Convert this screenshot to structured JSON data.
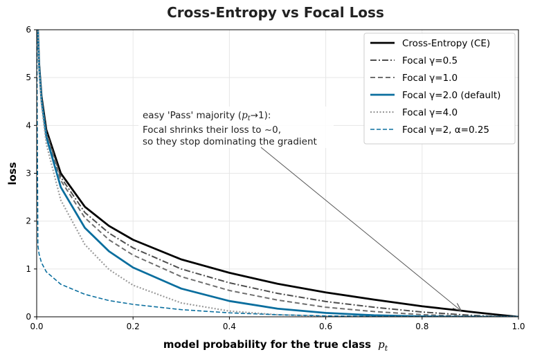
{
  "chart_data": {
    "type": "line",
    "title": "Cross-Entropy vs Focal Loss",
    "xlabel": "model probability for the true class",
    "xlabel_symbol": "p",
    "xlabel_symbol_sub": "t",
    "ylabel": "loss",
    "xlim": [
      0,
      1
    ],
    "ylim": [
      0,
      6
    ],
    "x_ticks": [
      0.0,
      0.2,
      0.4,
      0.6,
      0.8,
      1.0
    ],
    "x_tick_labels": [
      "0.0",
      "0.2",
      "0.4",
      "0.6",
      "0.8",
      "1.0"
    ],
    "y_ticks": [
      0,
      1,
      2,
      3,
      4,
      5,
      6
    ],
    "y_tick_labels": [
      "0",
      "1",
      "2",
      "3",
      "4",
      "5",
      "6"
    ],
    "grid": true,
    "legend_position": "top-right",
    "series": [
      {
        "name": "Cross-Entropy (CE)",
        "color": "#000000",
        "style": "solid",
        "x": [
          0.0025,
          0.005,
          0.01,
          0.02,
          0.05,
          0.1,
          0.15,
          0.2,
          0.3,
          0.4,
          0.5,
          0.6,
          0.7,
          0.8,
          0.88,
          0.9,
          0.95,
          1.0
        ],
        "y": [
          5.99,
          5.3,
          4.61,
          3.91,
          3.0,
          2.3,
          1.9,
          1.61,
          1.2,
          0.92,
          0.69,
          0.51,
          0.36,
          0.22,
          0.13,
          0.105,
          0.05,
          0.0
        ]
      },
      {
        "name": "Focal γ=0.5",
        "color": "#4d4d4d",
        "style": "dashdot",
        "x": [
          0.0025,
          0.005,
          0.01,
          0.02,
          0.05,
          0.1,
          0.15,
          0.2,
          0.3,
          0.4,
          0.5,
          0.6,
          0.7,
          0.8,
          0.88,
          0.9,
          0.95,
          1.0
        ],
        "y": [
          5.98,
          5.29,
          4.59,
          3.87,
          2.92,
          2.18,
          1.75,
          1.44,
          1.0,
          0.71,
          0.49,
          0.32,
          0.2,
          0.1,
          0.045,
          0.033,
          0.011,
          0.0
        ]
      },
      {
        "name": "Focal γ=1.0",
        "color": "#6e6e6e",
        "style": "dashed",
        "x": [
          0.0025,
          0.005,
          0.01,
          0.02,
          0.05,
          0.1,
          0.15,
          0.2,
          0.3,
          0.4,
          0.5,
          0.6,
          0.7,
          0.8,
          0.88,
          0.9,
          0.95,
          1.0
        ],
        "y": [
          5.98,
          5.27,
          4.56,
          3.83,
          2.85,
          2.07,
          1.61,
          1.29,
          0.84,
          0.55,
          0.35,
          0.2,
          0.11,
          0.045,
          0.016,
          0.011,
          0.0026,
          0.0
        ]
      },
      {
        "name": "Focal γ=2.0 (default)",
        "color": "#0a6e9e",
        "style": "solid",
        "x": [
          0.0025,
          0.005,
          0.01,
          0.02,
          0.05,
          0.1,
          0.15,
          0.2,
          0.3,
          0.4,
          0.5,
          0.6,
          0.7,
          0.8,
          0.88,
          0.9,
          0.95,
          1.0
        ],
        "y": [
          5.96,
          5.25,
          4.52,
          3.76,
          2.71,
          1.86,
          1.37,
          1.03,
          0.59,
          0.33,
          0.17,
          0.081,
          0.032,
          0.0089,
          0.002,
          0.001,
          0.0001,
          0.0
        ]
      },
      {
        "name": "Focal γ=4.0",
        "color": "#9a9a9a",
        "style": "dotted",
        "x": [
          0.0025,
          0.005,
          0.01,
          0.02,
          0.05,
          0.1,
          0.15,
          0.2,
          0.3,
          0.4,
          0.5,
          0.6,
          0.7,
          0.8,
          0.88,
          0.9,
          0.95,
          1.0
        ],
        "y": [
          5.93,
          5.2,
          4.43,
          3.61,
          2.44,
          1.51,
          0.99,
          0.66,
          0.29,
          0.12,
          0.043,
          0.013,
          0.0029,
          0.0004,
          0.0,
          0.0,
          0.0,
          0.0
        ]
      },
      {
        "name": "Focal γ=2, α=0.25",
        "color": "#0a6e9e",
        "style": "dashed-thin",
        "x": [
          0.0025,
          0.005,
          0.01,
          0.02,
          0.05,
          0.1,
          0.15,
          0.2,
          0.3,
          0.4,
          0.5,
          0.6,
          0.7,
          0.8,
          0.88,
          0.9,
          0.95,
          1.0
        ],
        "y": [
          1.49,
          1.31,
          1.13,
          0.94,
          0.68,
          0.47,
          0.34,
          0.26,
          0.15,
          0.083,
          0.043,
          0.02,
          0.008,
          0.0022,
          0.0005,
          0.0003,
          0.0,
          0.0
        ]
      }
    ],
    "annotation": {
      "line1_prefix": "easy 'Pass' majority (",
      "line1_math": "p",
      "line1_math_sub": "t",
      "line1_arrow": "→1):",
      "line2": "Focal shrinks their loss to ~0,",
      "line3": "so they stop dominating the gradient",
      "target_x": 0.88,
      "target_y": 0.12
    }
  }
}
